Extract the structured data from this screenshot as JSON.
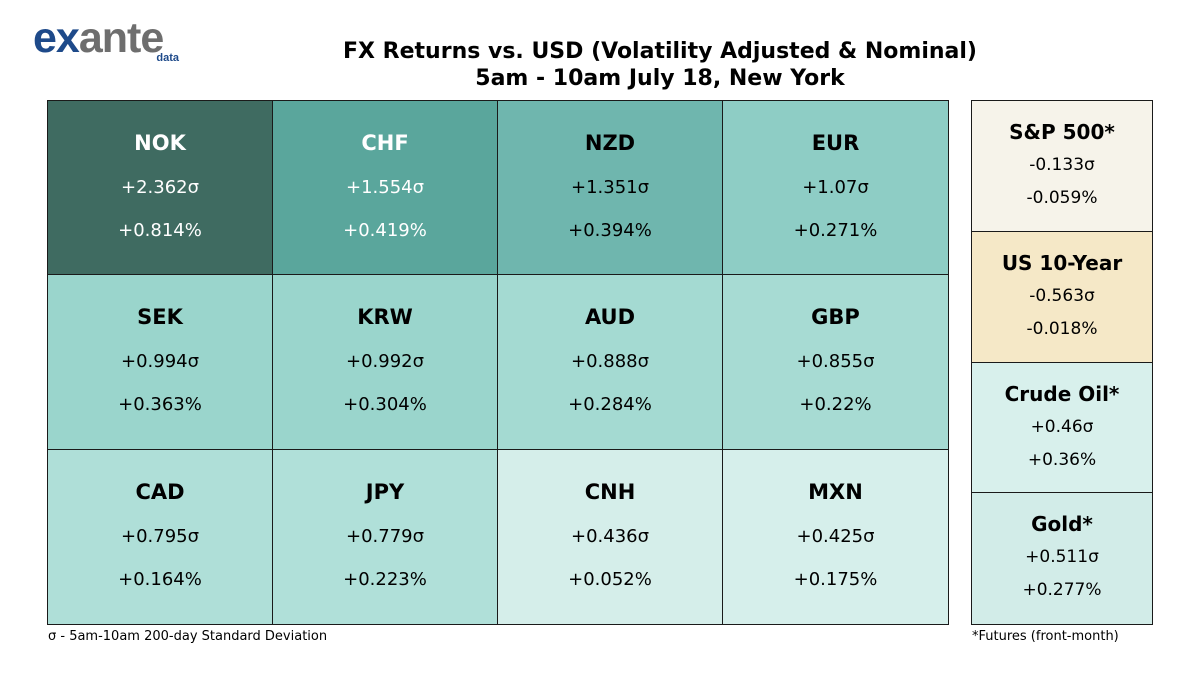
{
  "logo": {
    "word_part1": "ex",
    "word_part2": "ante",
    "sub": "data"
  },
  "title": {
    "line1": "FX Returns vs. USD (Volatility Adjusted & Nominal)",
    "line2": "5am - 10am July 18, New York"
  },
  "chart_data": {
    "type": "heatmap",
    "title": "FX Returns vs. USD (Volatility Adjusted & Nominal)",
    "subtitle": "5am - 10am July 18, New York",
    "fx": [
      {
        "code": "NOK",
        "sigma": "+2.362σ",
        "pct": "+0.814%",
        "color": "#3f6b61",
        "text_color": "#ffffff"
      },
      {
        "code": "CHF",
        "sigma": "+1.554σ",
        "pct": "+0.419%",
        "color": "#5aa69c",
        "text_color": "#ffffff"
      },
      {
        "code": "NZD",
        "sigma": "+1.351σ",
        "pct": "+0.394%",
        "color": "#6fb6ae",
        "text_color": "#000000"
      },
      {
        "code": "EUR",
        "sigma": "+1.07σ",
        "pct": "+0.271%",
        "color": "#8ecdc5",
        "text_color": "#000000"
      },
      {
        "code": "SEK",
        "sigma": "+0.994σ",
        "pct": "+0.363%",
        "color": "#9ad5cc",
        "text_color": "#000000"
      },
      {
        "code": "KRW",
        "sigma": "+0.992σ",
        "pct": "+0.304%",
        "color": "#9ad5cc",
        "text_color": "#000000"
      },
      {
        "code": "AUD",
        "sigma": "+0.888σ",
        "pct": "+0.284%",
        "color": "#a4dad2",
        "text_color": "#000000"
      },
      {
        "code": "GBP",
        "sigma": "+0.855σ",
        "pct": "+0.22%",
        "color": "#a7dbd3",
        "text_color": "#000000"
      },
      {
        "code": "CAD",
        "sigma": "+0.795σ",
        "pct": "+0.164%",
        "color": "#afdfd8",
        "text_color": "#000000"
      },
      {
        "code": "JPY",
        "sigma": "+0.779σ",
        "pct": "+0.223%",
        "color": "#b0e0d9",
        "text_color": "#000000"
      },
      {
        "code": "CNH",
        "sigma": "+0.436σ",
        "pct": "+0.052%",
        "color": "#d5eeea",
        "text_color": "#000000"
      },
      {
        "code": "MXN",
        "sigma": "+0.425σ",
        "pct": "+0.175%",
        "color": "#d6efeb",
        "text_color": "#000000"
      }
    ],
    "other_assets": [
      {
        "name": "S&P 500*",
        "sigma": "-0.133σ",
        "pct": "-0.059%",
        "color": "#f6f3ea"
      },
      {
        "name": "US 10-Year",
        "sigma": "-0.563σ",
        "pct": "-0.018%",
        "color": "#f5e8c7"
      },
      {
        "name": "Crude Oil*",
        "sigma": "+0.46σ",
        "pct": "+0.36%",
        "color": "#d8f0ec"
      },
      {
        "name": "Gold*",
        "sigma": "+0.511σ",
        "pct": "+0.277%",
        "color": "#d2ece8"
      }
    ]
  },
  "footnotes": {
    "left": "σ - 5am-10am 200-day Standard Deviation",
    "right": "*Futures (front-month)"
  }
}
